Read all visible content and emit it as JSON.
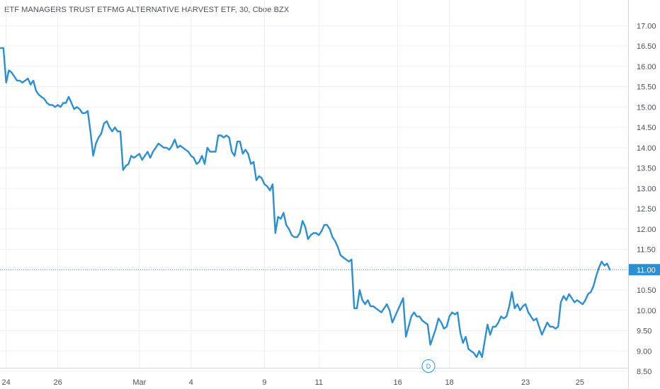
{
  "title": "ETF MANAGERS TRUST ETFMG ALTERNATIVE HARVEST ETF, 30, Cboe BZX",
  "colors": {
    "line": "#2b8fd6",
    "grid": "#eef0f3",
    "axis": "#d1d4dc",
    "price_line": "#2b8fd6",
    "text": "#4a4f5c"
  },
  "last_price_label": "11.00",
  "interval_badge": "D",
  "chart_data": {
    "type": "line",
    "title": "ETF MANAGERS TRUST ETFMG ALTERNATIVE HARVEST ETF, 30, Cboe BZX",
    "xlabel": "",
    "ylabel": "",
    "ylim": [
      8.25,
      17.2
    ],
    "yticks": [
      8.5,
      9.0,
      9.5,
      10.0,
      10.5,
      11.0,
      11.5,
      12.0,
      12.5,
      13.0,
      13.5,
      14.0,
      14.5,
      15.0,
      15.5,
      16.0,
      16.5,
      17.0
    ],
    "ytick_labels": [
      "8.50",
      "9.00",
      "9.50",
      "10.00",
      "10.50",
      "11.00",
      "11.50",
      "12.00",
      "12.50",
      "13.00",
      "13.50",
      "14.00",
      "14.50",
      "15.00",
      "15.50",
      "16.00",
      "16.50",
      "17.00"
    ],
    "xlim": [
      0,
      225
    ],
    "xticks": [
      {
        "label": "24",
        "x": 2
      },
      {
        "label": "26",
        "x": 21
      },
      {
        "label": "Mar",
        "x": 51
      },
      {
        "label": "4",
        "x": 70
      },
      {
        "label": "9",
        "x": 97
      },
      {
        "label": "11",
        "x": 117
      },
      {
        "label": "16",
        "x": 146
      },
      {
        "label": "18",
        "x": 165
      },
      {
        "label": "23",
        "x": 193
      },
      {
        "label": "25",
        "x": 213
      }
    ],
    "grid": true,
    "last_price": 11.0,
    "series": [
      {
        "values": [
          16.45,
          16.45,
          15.6,
          15.9,
          15.85,
          15.75,
          15.65,
          15.65,
          15.6,
          15.65,
          15.7,
          15.55,
          15.65,
          15.4,
          15.3,
          15.25,
          15.2,
          15.1,
          15.05,
          15.05,
          15.0,
          15.05,
          15.0,
          15.1,
          15.1,
          15.25,
          15.1,
          14.95,
          15.0,
          14.95,
          14.85,
          14.85,
          14.9,
          14.4,
          13.8,
          14.1,
          14.25,
          14.35,
          14.6,
          14.65,
          14.5,
          14.4,
          14.5,
          14.4,
          14.4,
          13.45,
          13.55,
          13.6,
          13.8,
          13.75,
          13.8,
          13.85,
          13.7,
          13.8,
          13.9,
          13.75,
          13.9,
          14.0,
          14.1,
          14.05,
          14.0,
          14.0,
          13.95,
          14.05,
          14.2,
          14.0,
          14.05,
          14.0,
          13.95,
          13.9,
          13.8,
          13.75,
          13.6,
          13.65,
          13.8,
          13.6,
          14.0,
          13.9,
          13.9,
          13.9,
          14.3,
          14.3,
          14.25,
          14.3,
          14.25,
          13.9,
          13.8,
          14.15,
          14.15,
          13.85,
          13.95,
          13.85,
          13.6,
          13.65,
          13.2,
          13.3,
          13.25,
          13.1,
          13.05,
          12.95,
          13.1,
          11.9,
          12.3,
          12.25,
          12.4,
          12.1,
          12.0,
          11.85,
          11.8,
          11.8,
          11.9,
          12.2,
          12.05,
          11.75,
          11.85,
          11.9,
          11.9,
          11.85,
          11.95,
          12.1,
          12.1,
          12.0,
          11.8,
          11.7,
          11.55,
          11.35,
          11.3,
          11.25,
          11.2,
          11.25,
          10.05,
          10.05,
          10.5,
          10.25,
          10.15,
          10.25,
          10.1,
          10.1,
          10.05,
          10.0,
          9.95,
          10.05,
          10.15,
          10.0,
          9.7,
          9.85,
          10.0,
          10.15,
          10.3,
          9.35,
          9.6,
          9.85,
          9.95,
          9.85,
          9.85,
          9.75,
          9.7,
          9.65,
          9.15,
          9.35,
          9.55,
          9.8,
          9.7,
          9.55,
          9.6,
          9.85,
          9.95,
          9.9,
          9.95,
          9.45,
          9.2,
          9.35,
          9.05,
          9.0,
          8.95,
          8.85,
          9.0,
          8.85,
          9.25,
          9.65,
          9.4,
          9.6,
          9.6,
          9.7,
          9.85,
          9.8,
          9.85,
          10.1,
          10.45,
          10.05,
          10.15,
          10.0,
          10.1,
          10.15,
          9.95,
          9.85,
          9.75,
          9.8,
          9.6,
          9.4,
          9.55,
          9.7,
          9.6,
          9.6,
          9.55,
          9.6,
          10.2,
          10.35,
          10.25,
          10.4,
          10.3,
          10.2,
          10.25,
          10.2,
          10.15,
          10.25,
          10.4,
          10.45,
          10.6,
          10.85,
          11.05,
          11.2,
          11.1,
          11.15,
          11.0
        ]
      }
    ]
  }
}
